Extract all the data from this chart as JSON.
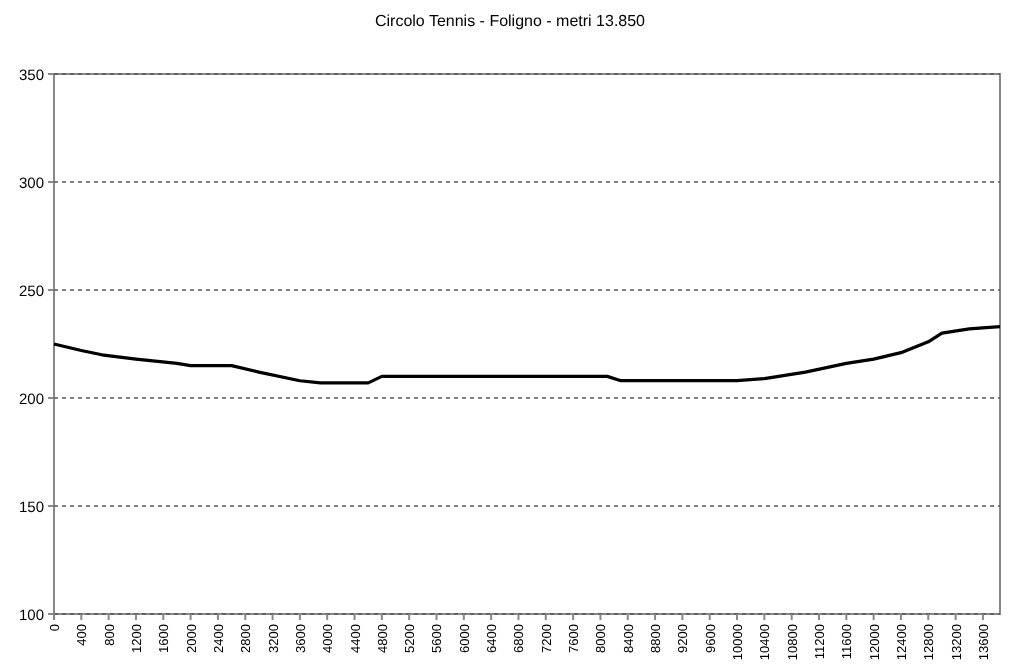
{
  "chart_data": {
    "type": "line",
    "title": "Circolo Tennis - Foligno - metri 13.850",
    "x": [
      0,
      400,
      700,
      1200,
      1800,
      2000,
      2600,
      3000,
      3600,
      3900,
      4600,
      4800,
      8100,
      8300,
      10000,
      10400,
      11000,
      11600,
      12000,
      12400,
      12800,
      13000,
      13400,
      13850
    ],
    "series": [
      {
        "color": "#000000",
        "values": [
          225,
          222,
          220,
          218,
          216,
          215,
          215,
          212,
          208,
          207,
          207,
          210,
          210,
          208,
          208,
          209,
          212,
          216,
          218,
          221,
          226,
          230,
          232,
          233
        ]
      }
    ],
    "xlim": [
      0,
      13850
    ],
    "xticks": [
      0,
      400,
      800,
      1200,
      1600,
      2000,
      2400,
      2800,
      3200,
      3600,
      4000,
      4400,
      4800,
      5200,
      5600,
      6000,
      6400,
      6800,
      7200,
      7600,
      8000,
      8400,
      8800,
      9200,
      9600,
      10000,
      10400,
      10800,
      11200,
      11600,
      12000,
      12400,
      12800,
      13200,
      13600
    ],
    "ylim": [
      100,
      350
    ],
    "yticks": [
      100,
      150,
      200,
      250,
      300,
      350
    ],
    "grid": "y",
    "marker": "none",
    "line_style": "solid"
  }
}
